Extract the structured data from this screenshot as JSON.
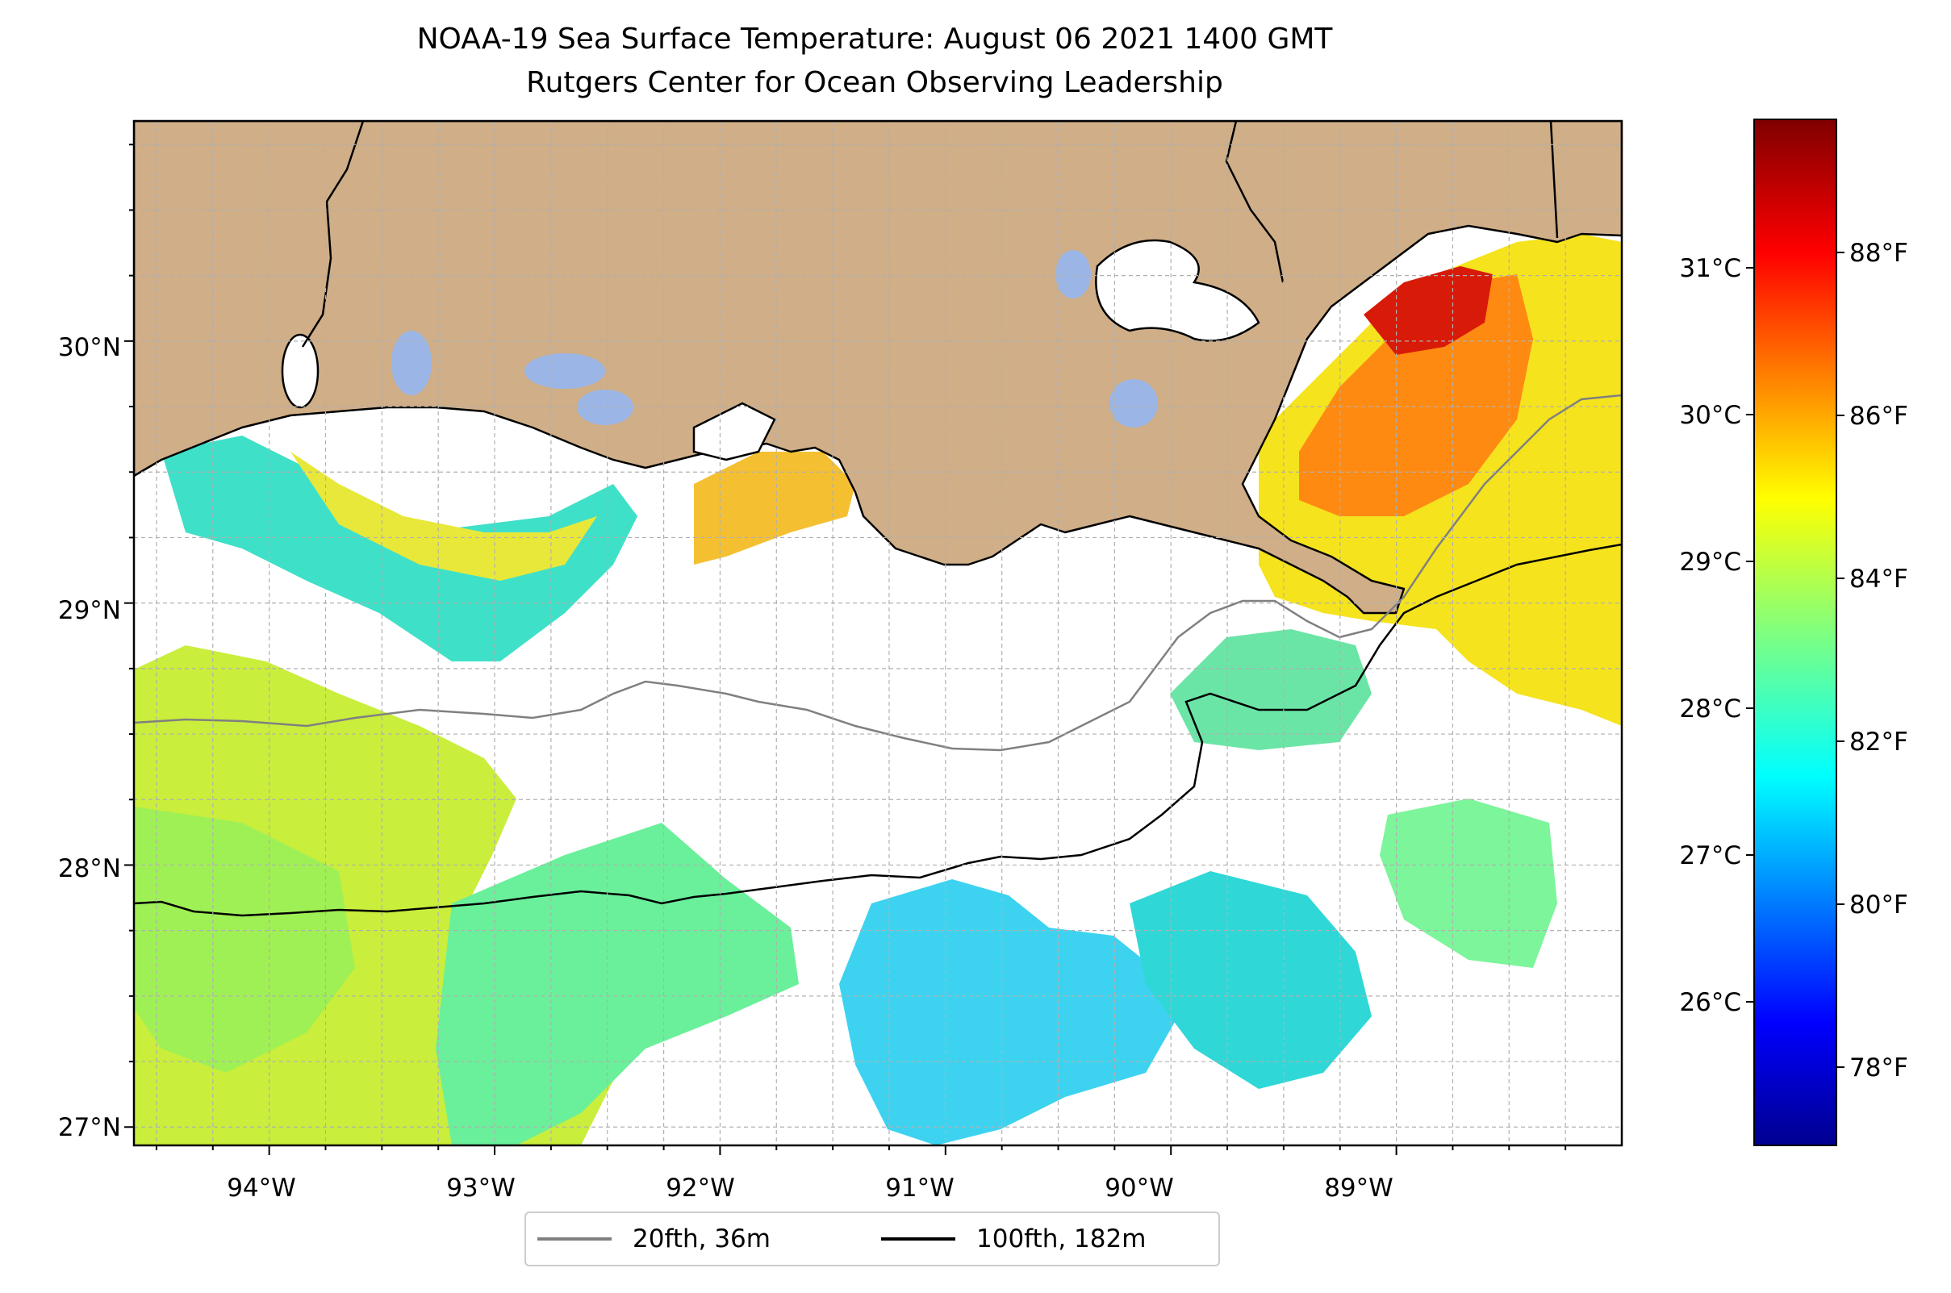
{
  "title": "NOAA-19 Sea Surface Temperature: August 06 2021 1400 GMT",
  "subtitle": "Rutgers Center for Ocean Observing Leadership",
  "map": {
    "lon_range": [
      -94.6,
      -88.0
    ],
    "lat_range": [
      26.93,
      30.84
    ],
    "lon_ticks": [
      "94°W",
      "93°W",
      "92°W",
      "91°W",
      "90°W",
      "89°W"
    ],
    "lat_ticks": [
      "27°N",
      "28°N",
      "29°N",
      "30°N"
    ],
    "gridlines": true,
    "colors": {
      "land": "#cfae88",
      "lakes": "#9bb6e6",
      "no_data": "#ffffff"
    }
  },
  "colorbar": {
    "colormap": "jet",
    "celsius_labels": [
      "26°C",
      "27°C",
      "28°C",
      "29°C",
      "30°C",
      "31°C"
    ],
    "fahrenheit_labels": [
      "78°F",
      "80°F",
      "82°F",
      "84°F",
      "86°F",
      "88°F"
    ]
  },
  "legend": {
    "position": "bottom-center",
    "items": [
      {
        "label": "20fth, 36m",
        "color": "#808080"
      },
      {
        "label": "100fth, 182m",
        "color": "#000000"
      }
    ]
  }
}
